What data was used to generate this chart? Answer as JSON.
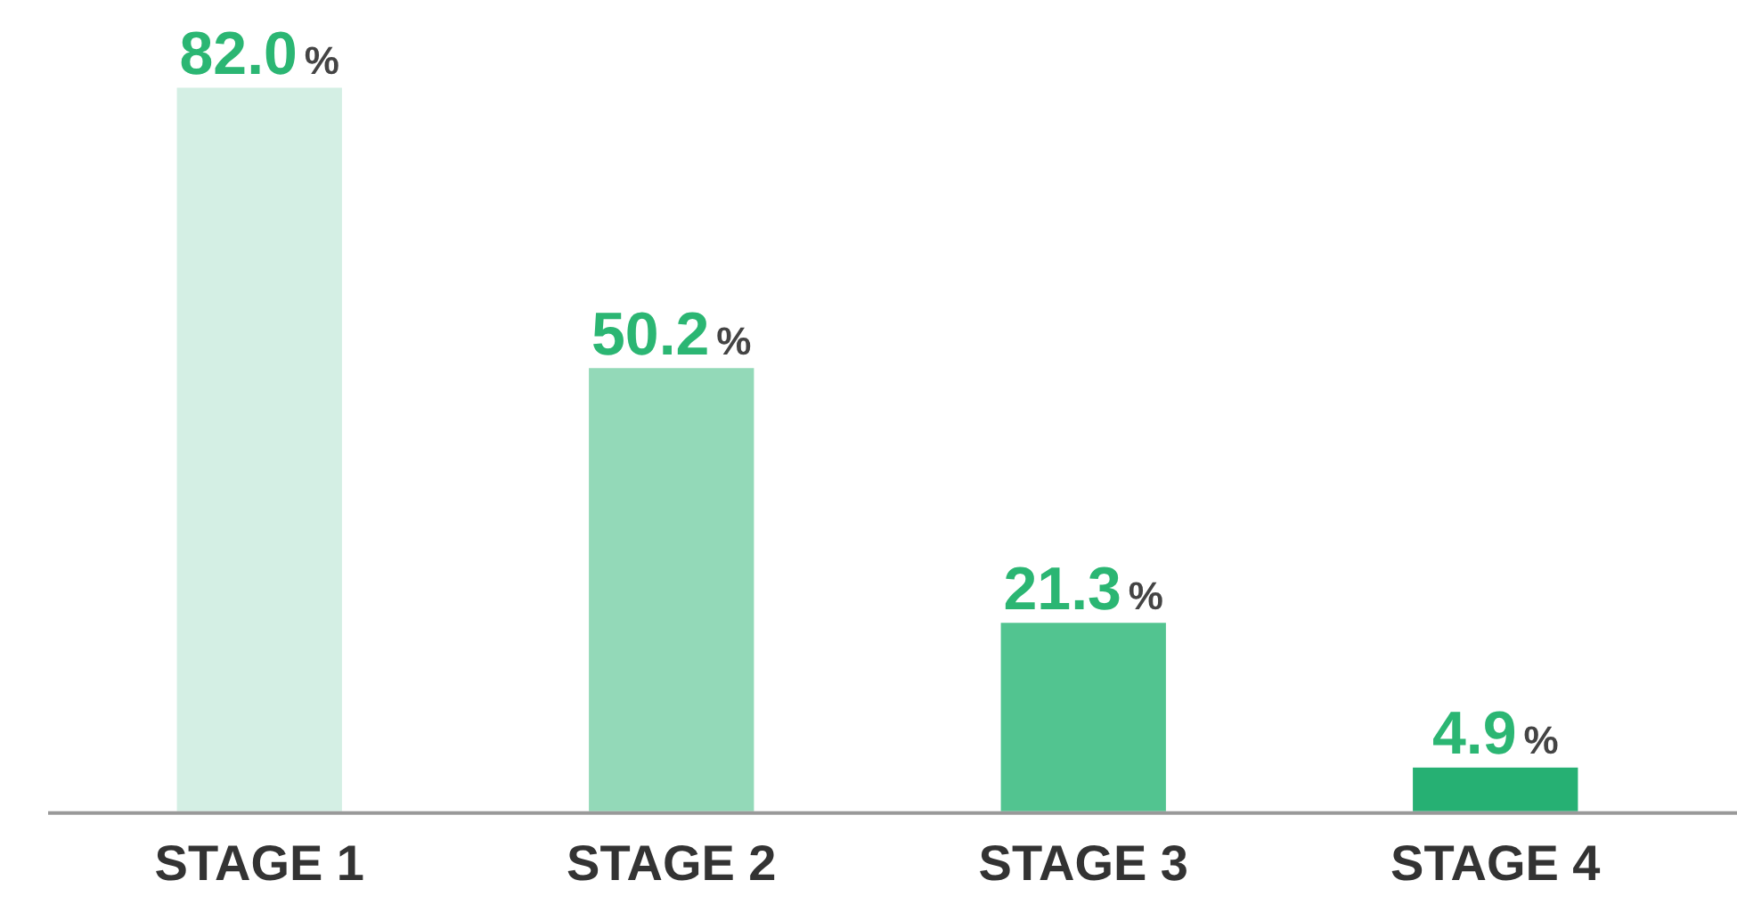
{
  "chart_data": {
    "type": "bar",
    "categories": [
      "STAGE 1",
      "STAGE 2",
      "STAGE 3",
      "STAGE 4"
    ],
    "values": [
      82.0,
      50.2,
      21.3,
      4.9
    ],
    "colors": [
      "#d4efe4",
      "#93d9b8",
      "#52c490",
      "#26b073"
    ],
    "value_labels": [
      "82.0%",
      "50.2%",
      "21.3%",
      "4.9%"
    ],
    "tick_labels": "x",
    "grid": false,
    "legend": false
  }
}
